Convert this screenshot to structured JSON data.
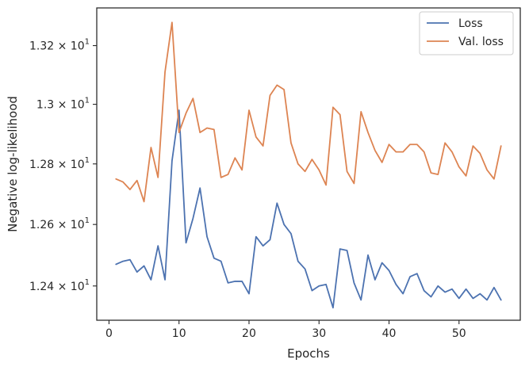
{
  "chart_data": {
    "type": "line",
    "xlabel": "Epochs",
    "ylabel": "Negative log-likelihood",
    "xlim": [
      -1.75,
      58.75
    ],
    "ylim": [
      12.29,
      13.33
    ],
    "y_scale": "log",
    "x_ticks": [
      0,
      10,
      20,
      30,
      40,
      50
    ],
    "x_tick_labels": [
      "0",
      "10",
      "20",
      "30",
      "40",
      "50"
    ],
    "y_ticks": [
      12.4,
      12.6,
      12.8,
      13.0,
      13.2
    ],
    "y_tick_labels": [
      {
        "mantissa": "1.24",
        "exp": "1"
      },
      {
        "mantissa": "1.26",
        "exp": "1"
      },
      {
        "mantissa": "1.28",
        "exp": "1"
      },
      {
        "mantissa": "1.3",
        "exp": "1"
      },
      {
        "mantissa": "1.32",
        "exp": "1"
      }
    ],
    "legend_position": "top-right",
    "grid": false,
    "x": [
      1,
      2,
      3,
      4,
      5,
      6,
      7,
      8,
      9,
      10,
      11,
      12,
      13,
      14,
      15,
      16,
      17,
      18,
      19,
      20,
      21,
      22,
      23,
      24,
      25,
      26,
      27,
      28,
      29,
      30,
      31,
      32,
      33,
      34,
      35,
      36,
      37,
      38,
      39,
      40,
      41,
      42,
      43,
      44,
      45,
      46,
      47,
      48,
      49,
      50,
      51,
      52,
      53,
      54,
      55,
      56
    ],
    "series": [
      {
        "name": "Loss",
        "color": "#4c72b0",
        "values": [
          12.47,
          12.48,
          12.485,
          12.445,
          12.465,
          12.42,
          12.53,
          12.42,
          12.81,
          12.98,
          12.54,
          12.62,
          12.72,
          12.56,
          12.49,
          12.48,
          12.41,
          12.415,
          12.415,
          12.375,
          12.56,
          12.53,
          12.55,
          12.67,
          12.6,
          12.57,
          12.48,
          12.455,
          12.385,
          12.4,
          12.405,
          12.33,
          12.52,
          12.515,
          12.41,
          12.355,
          12.5,
          12.42,
          12.475,
          12.45,
          12.405,
          12.375,
          12.43,
          12.44,
          12.385,
          12.365,
          12.4,
          12.38,
          12.39,
          12.36,
          12.39,
          12.36,
          12.375,
          12.355,
          12.395,
          12.355
        ]
      },
      {
        "name": "Val. loss",
        "color": "#dd8452",
        "values": [
          12.75,
          12.74,
          12.715,
          12.745,
          12.675,
          12.855,
          12.755,
          13.11,
          13.28,
          12.905,
          12.97,
          13.02,
          12.905,
          12.92,
          12.915,
          12.755,
          12.765,
          12.82,
          12.78,
          12.98,
          12.89,
          12.86,
          13.03,
          13.065,
          13.05,
          12.87,
          12.8,
          12.775,
          12.815,
          12.78,
          12.73,
          12.99,
          12.965,
          12.775,
          12.735,
          12.975,
          12.905,
          12.845,
          12.805,
          12.865,
          12.84,
          12.84,
          12.865,
          12.865,
          12.84,
          12.77,
          12.765,
          12.87,
          12.84,
          12.79,
          12.76,
          12.86,
          12.835,
          12.78,
          12.75,
          12.86
        ]
      }
    ]
  }
}
